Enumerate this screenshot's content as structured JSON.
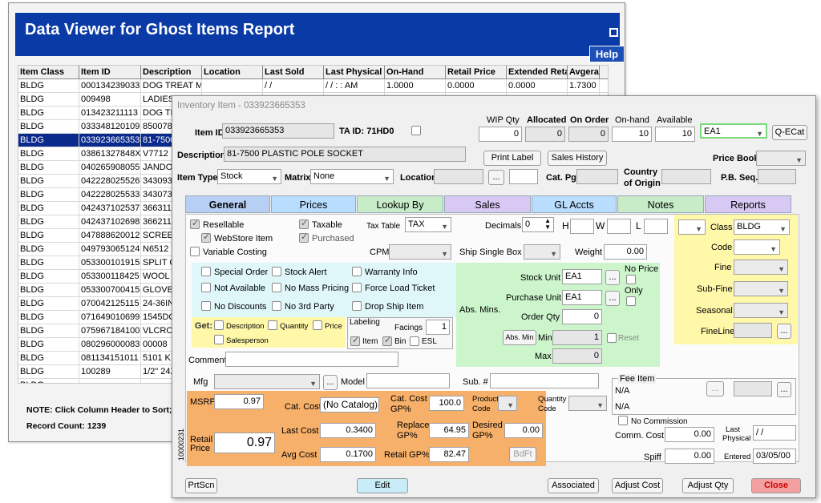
{
  "back": {
    "title": "Data Viewer for Ghost Items Report",
    "help": "Help",
    "columns": [
      "Item Class",
      "Item ID",
      "Description",
      "Location",
      "Last Sold",
      "Last Physical",
      "On-Hand",
      "Retail Price",
      "Extended Reta",
      "Avgera"
    ],
    "rows": [
      [
        "BLDG",
        "000134239033",
        "DOG TREAT MI",
        "",
        "/ /",
        "/ /   :  :  AM",
        "1.0000",
        "0.0000",
        "0.0000",
        "1.7300"
      ],
      [
        "BLDG",
        "009498",
        "LADIES",
        "",
        "",
        "",
        "",
        "",
        "",
        ""
      ],
      [
        "BLDG",
        "013423211113",
        "DOG TR",
        "",
        "",
        "",
        "",
        "",
        "",
        ""
      ],
      [
        "BLDG",
        "033348120109",
        "850078",
        "",
        "",
        "",
        "",
        "",
        "",
        ""
      ],
      [
        "BLDG",
        "033923665353",
        "81-7500",
        "",
        "",
        "",
        "",
        "",
        "",
        ""
      ],
      [
        "BLDG",
        "03861327848X",
        "V7712",
        "",
        "",
        "",
        "",
        "",
        "",
        ""
      ],
      [
        "BLDG",
        "040265908055",
        "JANDO",
        "",
        "",
        "",
        "",
        "",
        "",
        ""
      ],
      [
        "BLDG",
        "042228025526",
        "343093",
        "",
        "",
        "",
        "",
        "",
        "",
        ""
      ],
      [
        "BLDG",
        "042228025533",
        "343073",
        "",
        "",
        "",
        "",
        "",
        "",
        ""
      ],
      [
        "BLDG",
        "042437102537",
        "366311",
        "",
        "",
        "",
        "",
        "",
        "",
        ""
      ],
      [
        "BLDG",
        "042437102698",
        "366211",
        "",
        "",
        "",
        "",
        "",
        "",
        ""
      ],
      [
        "BLDG",
        "047888620012",
        "SCREEN",
        "",
        "",
        "",
        "",
        "",
        "",
        ""
      ],
      [
        "BLDG",
        "049793065124",
        "N6512 W",
        "",
        "",
        "",
        "",
        "",
        "",
        ""
      ],
      [
        "BLDG",
        "053300101915",
        "SPLIT C",
        "",
        "",
        "",
        "",
        "",
        "",
        ""
      ],
      [
        "BLDG",
        "053300118425",
        "WOOL F",
        "",
        "",
        "",
        "",
        "",
        "",
        ""
      ],
      [
        "BLDG",
        "053300700415",
        "GLOVE",
        "",
        "",
        "",
        "",
        "",
        "",
        ""
      ],
      [
        "BLDG",
        "070042125115",
        "24-36IN",
        "",
        "",
        "",
        "",
        "",
        "",
        ""
      ],
      [
        "BLDG",
        "071649010699",
        "1545DC",
        "",
        "",
        "",
        "",
        "",
        "",
        ""
      ],
      [
        "BLDG",
        "075967184100",
        "VLCRO",
        "",
        "",
        "",
        "",
        "",
        "",
        ""
      ],
      [
        "BLDG",
        "080296000083",
        "00008",
        "",
        "",
        "",
        "",
        "",
        "",
        ""
      ],
      [
        "BLDG",
        "081134151011",
        "5101 K",
        "",
        "",
        "",
        "",
        "",
        "",
        ""
      ],
      [
        "BLDG",
        "100289",
        "1/2\" 24X",
        "",
        "",
        "",
        "",
        "",
        "",
        ""
      ],
      [
        "BLDG",
        "",
        "",
        "",
        "",
        "",
        "",
        "",
        "",
        ""
      ]
    ],
    "selected_row": 4,
    "note": "NOTE: Click Column Header to Sort; R",
    "count": "Record Count: 1239"
  },
  "front": {
    "title": "Inventory Item - 033923665353",
    "item_id_label": "Item ID",
    "item_id": "033923665353",
    "ta_id": "TA ID: 71HD0",
    "wip_qty_label": "WIP Qty",
    "wip_qty": "0",
    "allocated_label": "Allocated",
    "allocated": "0",
    "on_order_label": "On Order",
    "on_order": "0",
    "on_hand_label": "On-hand",
    "on_hand": "10",
    "available_label": "Available",
    "available": "10",
    "unit_select": "EA1",
    "qecat": "Q-ECat",
    "description_label": "Description",
    "description": "81-7500 PLASTIC POLE SOCKET",
    "print_label": "Print Label",
    "sales_history": "Sales History",
    "price_book_label": "Price Book",
    "item_type_label": "Item Type",
    "item_type": "Stock",
    "matrix_label": "Matrix",
    "matrix": "None",
    "location_label": "Location",
    "cat_pg_label": "Cat. Pg.",
    "country_label1": "Country",
    "country_label2": "of Origin",
    "pb_seq_label": "P.B. Seq.",
    "tabs": [
      "General",
      "Prices",
      "Lookup By",
      "Sales",
      "GL Accts",
      "Notes",
      "Reports"
    ],
    "resellable": "Resellable",
    "taxable": "Taxable",
    "tax_table_label": "Tax Table",
    "tax_table": "TAX",
    "decimals_label": "Decimals",
    "decimals": "0",
    "h_label": "H",
    "w_label": "W",
    "l_label": "L",
    "webstore": "WebStore Item",
    "purchased": "Purchased",
    "variable_costing": "Variable Costing",
    "cpm_label": "CPM",
    "ship_single_label": "Ship Single Box",
    "weight_label": "Weight",
    "weight": "0.00",
    "class_label": "Class",
    "class": "BLDG",
    "code_label": "Code",
    "fine_label": "Fine",
    "subfine_label": "Sub-Fine",
    "seasonal_label": "Seasonal",
    "fineline_label": "FineLine",
    "special_order": "Special Order",
    "stock_alert": "Stock Alert",
    "warranty_info": "Warranty Info",
    "not_available": "Not Available",
    "no_mass_pricing": "No Mass Pricing",
    "force_load_ticket": "Force Load Ticket",
    "no_discounts": "No Discounts",
    "no_3rd_party": "No 3rd Party",
    "drop_ship_item": "Drop Ship Item",
    "get_label": "Get:",
    "get_description": "Description",
    "get_quantity": "Quantity",
    "get_price": "Price",
    "get_salesperson": "Salesperson",
    "labeling_label": "Labeling",
    "facings_label": "Facings",
    "facings": "1",
    "label_item": "Item",
    "label_bin": "Bin",
    "label_esl": "ESL",
    "stock_unit_label": "Stock Unit",
    "stock_unit": "EA1",
    "purchase_unit_label": "Purchase Unit",
    "purchase_unit": "EA1",
    "order_qty_label": "Order Qty",
    "order_qty": "0",
    "abs_mins_label": "Abs. Mins.",
    "abs_min_btn": "Abs. Min",
    "min_label": "Min",
    "min_value": "1",
    "max_label": "Max",
    "max_value": "0",
    "no_price_label": "No Price",
    "only_label": "Only",
    "reset_label": "Reset",
    "comment_label": "Comment",
    "mfg_label": "Mfg",
    "model_label": "Model",
    "sub_label": "Sub. #",
    "fee_item_label": "Fee Item",
    "fee_na1": "N/A",
    "fee_na2": "N/A",
    "msrp_label": "MSRP",
    "msrp": "0.97",
    "cat_cost_label": "Cat. Cost",
    "cat_cost": "(No Catalog)",
    "cat_cost_gp_label1": "Cat. Cost",
    "cat_cost_gp_label2": "GP%",
    "cat_cost_gp": "100.0",
    "product_code_label1": "Product",
    "product_code_label2": "Code",
    "quantity_code_label1": "Quantity",
    "quantity_code_label2": "Code",
    "retail_price_label1": "Retail",
    "retail_price_label2": "Price",
    "retail_price": "0.97",
    "vertical_code": "10000231",
    "last_cost_label": "Last Cost",
    "last_cost": "0.3400",
    "replace_gp_label1": "Replace",
    "replace_gp_label2": "GP%",
    "replace_gp": "64.95",
    "desired_gp_label1": "Desired",
    "desired_gp_label2": "GP%",
    "desired_gp": "0.00",
    "avg_cost_label": "Avg Cost",
    "avg_cost": "0.1700",
    "retail_gp_label": "Retail GP%",
    "retail_gp": "82.47",
    "bdft": "BdFt",
    "no_commission": "No Commission",
    "comm_cost_label": "Comm. Cost",
    "comm_cost": "0.00",
    "last_physical_label1": "Last",
    "last_physical_label2": "Physical",
    "last_physical": "/ /",
    "spiff_label": "Spiff",
    "spiff": "0.00",
    "entered_label": "Entered",
    "entered": "03/05/00",
    "prtscn": "PrtScn",
    "edit": "Edit",
    "associated": "Associated",
    "adjust_cost": "Adjust Cost",
    "adjust_qty": "Adjust Qty",
    "close": "Close",
    "colors": {
      "general": "#fff8a8",
      "notes": "#e0f7fa",
      "abs": "#ccf5cc",
      "price": "#f6b06a",
      "class": "#fff8a8"
    }
  }
}
